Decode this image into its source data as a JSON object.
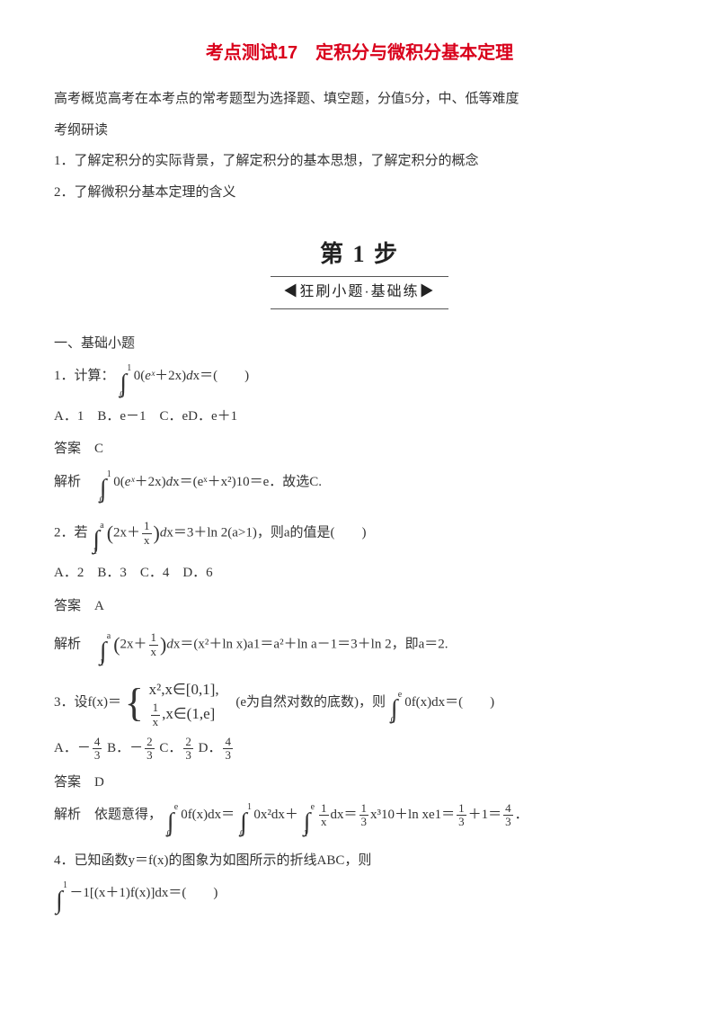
{
  "title": "考点测试17　定积分与微积分基本定理",
  "intro": "高考概览高考在本考点的常考题型为选择题、填空题，分值5分，中、低等难度",
  "syllabus_head": "考纲研读",
  "syllabus_1": "1．了解定积分的实际背景，了解定积分的基本思想，了解定积分的概念",
  "syllabus_2": "2．了解微积分基本定理的含义",
  "step_banner_line1": "第 1 步",
  "step_banner_line2": "◀狂刷小题·基础练▶",
  "section1": "一、基础小题",
  "q1_prefix": "1．计算：",
  "q1_expr_a": "0(",
  "q1_expr_b": "＋2x)",
  "q1_expr_c": "x＝(　　)",
  "q1_options": "A．1　B．e－1　C．eD．e＋1",
  "answer_label": "答案　C",
  "explain_label": "解析　",
  "q1_explain_rest": "x＝(eˣ＋x²)10＝e．故选C.",
  "q2_prefix": "2．若",
  "q2_rest": "x＝3＋ln 2(a>1)，则a的值是(　　)",
  "q2_options": "A．2　B．3　C．4　D．6",
  "q2_answer": "答案　A",
  "q2_explain": "x＝(x²＋ln x)a1＝a²＋ln a－1＝3＋ln 2，即a＝2.",
  "q3_prefix": "3．设f(x)＝",
  "q3_tail": "　(e为自然对数的底数)，则",
  "q3_tail2": "0f(x)dx＝(　　)",
  "q3_options_a": "A．－",
  "q3_options_b": "B．－",
  "q3_options_c": "C．",
  "q3_options_d": "D．",
  "q3_answer": "答案　D",
  "q3_explain_pre": "解析　依题意得，",
  "q3_explain_rest": "x³10＋ln xe1＝",
  "plus1": "＋1＝",
  "period": "．",
  "q4_line1": "4．已知函数y＝f(x)的图象为如图所示的折线ABC，则",
  "q4_line2": "－1[(x＋1)f(x)]dx＝(　　)",
  "frac_4_3": {
    "num": "4",
    "den": "3"
  },
  "frac_2_3": {
    "num": "2",
    "den": "3"
  },
  "frac_1_3": {
    "num": "1",
    "den": "3"
  },
  "frac_1_x": {
    "num": "1",
    "den": "x"
  },
  "piece1": "x²,x∈[0,1],",
  "piece2_a": ",x∈(1,e]",
  "int_upper_1": "1",
  "int_lower_0": "0",
  "int_upper_a": "a",
  "int_lower_1": "1",
  "int_upper_e": "e",
  "dx": "d",
  "e_x": "eˣ",
  "twox_plus": "2x＋",
  "zero_f": "0f(x)dx＝",
  "zero_x2": "0x²dx＋",
  "one_over_x": "dx＝"
}
